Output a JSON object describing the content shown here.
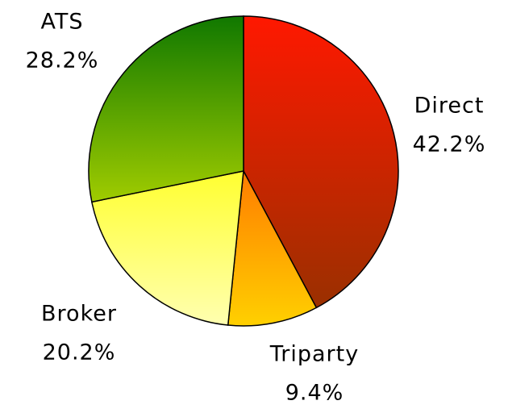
{
  "chart_data": {
    "type": "pie",
    "categories": [
      "Direct",
      "Triparty",
      "Broker",
      "ATS"
    ],
    "values": [
      42.2,
      9.4,
      20.2,
      28.2
    ],
    "value_labels": [
      "42.2%",
      "9.4%",
      "20.2%",
      "28.2%"
    ],
    "colors": [
      [
        "#ff1800",
        "#9a3000"
      ],
      [
        "#ff7c00",
        "#ffd000"
      ],
      [
        "#ffff30",
        "#ffffb0"
      ],
      [
        "#107800",
        "#a0cc00"
      ]
    ]
  }
}
